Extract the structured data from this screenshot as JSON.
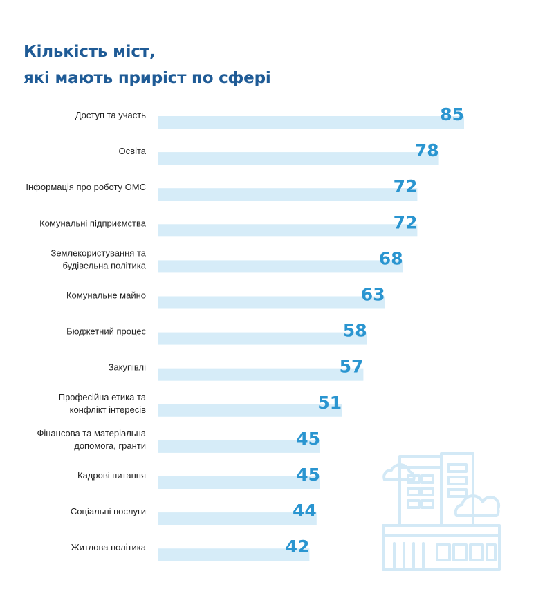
{
  "title_lines": [
    "Кількість міст,",
    "які мають приріст по сфері"
  ],
  "colors": {
    "title": "#1f5b96",
    "bar": "#d6ecf8",
    "value": "#2a95d0",
    "label": "#222222",
    "illustration": "#d3e9f6"
  },
  "chart_data": {
    "type": "bar",
    "orientation": "horizontal",
    "title": "Кількість міст, які мають приріст по сфері",
    "xlim": [
      0,
      100
    ],
    "grid": false,
    "categories": [
      [
        "Доступ та участь"
      ],
      [
        "Освіта"
      ],
      [
        "Інформація про роботу ОМС"
      ],
      [
        "Комунальні підприємства"
      ],
      [
        "Землекористування та",
        "будівельна політика"
      ],
      [
        "Комунальне майно"
      ],
      [
        "Бюджетний процес"
      ],
      [
        "Закупівлі"
      ],
      [
        "Професійна етика та",
        "конфлікт інтересів"
      ],
      [
        "Фінансова та матеріальна",
        "допомога, гранти"
      ],
      [
        "Кадрові питання"
      ],
      [
        "Соціальні послуги"
      ],
      [
        "Житлова політика"
      ]
    ],
    "values": [
      85,
      78,
      72,
      72,
      68,
      63,
      58,
      57,
      51,
      45,
      45,
      44,
      42
    ]
  }
}
